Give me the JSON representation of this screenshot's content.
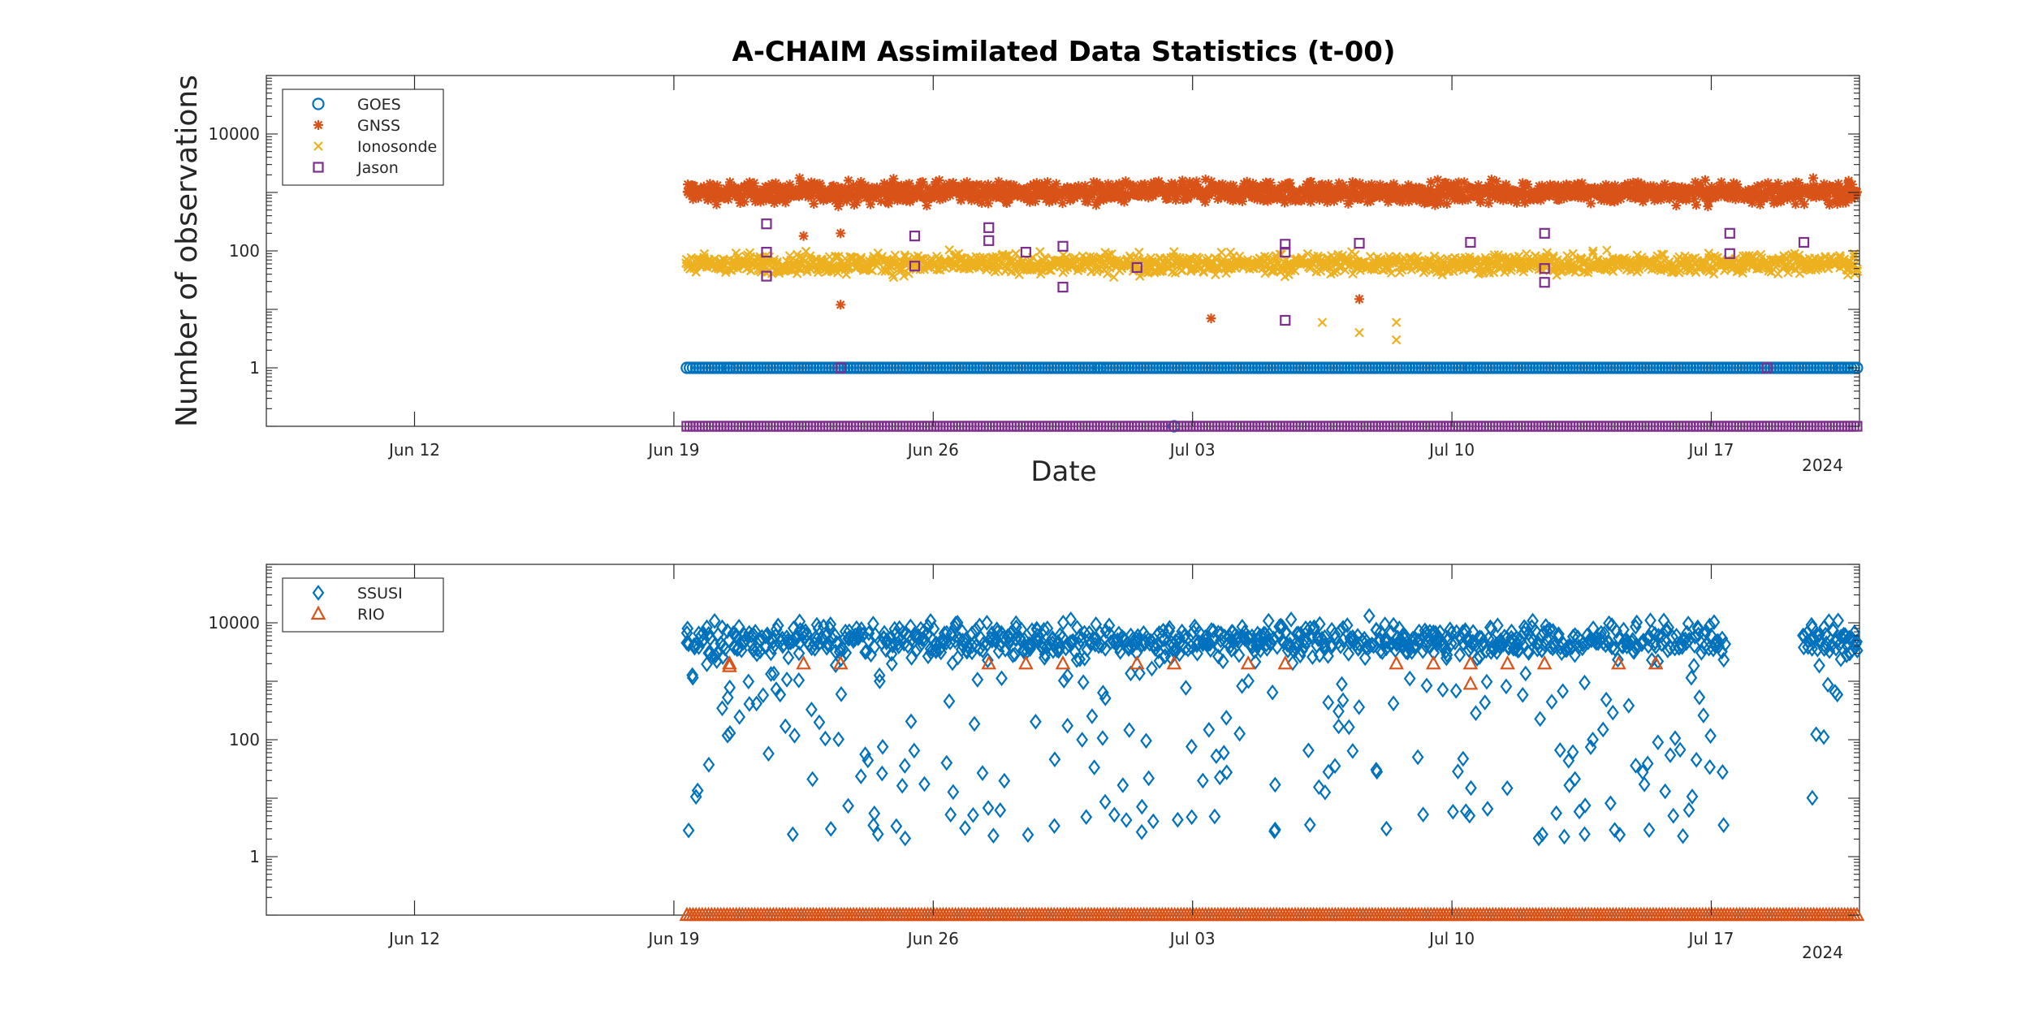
{
  "chart_data": [
    {
      "type": "scatter",
      "title": "A-CHAIM Assimilated Data Statistics (t-00)",
      "xlabel": "Date",
      "ylabel": "Number of observations",
      "x_axis": "time",
      "xlim": [
        "2024-06-08",
        "2024-07-21"
      ],
      "x_ticks": [
        "Jun 12",
        "Jun 19",
        "Jun 26",
        "Jul 03",
        "Jul 10",
        "Jul 17"
      ],
      "x_secondary_label": "2024",
      "yscale": "log",
      "ylim": [
        0.1,
        100000
      ],
      "y_ticks": [
        "1",
        "100",
        "10000"
      ],
      "legend_position": "top-left",
      "series": [
        {
          "name": "GOES",
          "marker": "circle",
          "color": "#0072BD",
          "x_range": [
            "2024-06-19",
            "2024-07-21"
          ],
          "typical_value": 1,
          "sample": [
            [
              "2024-06-20",
              1
            ],
            [
              "2024-06-30",
              1
            ],
            [
              "2024-07-10",
              1
            ],
            [
              "2024-07-20",
              1
            ],
            [
              "2024-07-02",
              0.1
            ]
          ]
        },
        {
          "name": "GNSS",
          "marker": "asterisk",
          "color": "#D95319",
          "x_range": [
            "2024-06-19",
            "2024-07-21"
          ],
          "typical_value": 1000,
          "value_range": [
            300,
            2500
          ],
          "sample": [
            [
              "2024-06-22",
              180
            ],
            [
              "2024-06-23",
              200
            ],
            [
              "2024-06-23",
              12
            ],
            [
              "2024-07-03",
              7
            ],
            [
              "2024-07-07",
              15
            ]
          ]
        },
        {
          "name": "Ionosonde",
          "marker": "x",
          "color": "#EDB120",
          "x_range": [
            "2024-06-19",
            "2024-07-21"
          ],
          "typical_value": 60,
          "value_range": [
            20,
            150
          ],
          "sample": [
            [
              "2024-07-06",
              6
            ],
            [
              "2024-07-07",
              4
            ],
            [
              "2024-07-08",
              6
            ],
            [
              "2024-07-08",
              3
            ]
          ]
        },
        {
          "name": "Jason",
          "marker": "square",
          "color": "#7E2F8E",
          "x_range": [
            "2024-06-19",
            "2024-07-21"
          ],
          "typical_value": 0.1,
          "sample": [
            [
              "2024-06-21",
              290
            ],
            [
              "2024-06-21",
              95
            ],
            [
              "2024-06-21",
              37
            ],
            [
              "2024-06-25",
              180
            ],
            [
              "2024-06-25",
              55
            ],
            [
              "2024-06-27",
              250
            ],
            [
              "2024-06-27",
              150
            ],
            [
              "2024-06-28",
              95
            ],
            [
              "2024-06-29",
              120
            ],
            [
              "2024-06-29",
              24
            ],
            [
              "2024-07-01",
              52
            ],
            [
              "2024-07-05",
              130
            ],
            [
              "2024-07-05",
              95
            ],
            [
              "2024-07-05",
              6.5
            ],
            [
              "2024-07-07",
              135
            ],
            [
              "2024-07-10",
              140
            ],
            [
              "2024-07-12",
              200
            ],
            [
              "2024-07-12",
              50
            ],
            [
              "2024-07-12",
              29
            ],
            [
              "2024-07-17",
              200
            ],
            [
              "2024-07-17",
              90
            ],
            [
              "2024-07-19",
              140
            ],
            [
              "2024-06-23",
              1
            ],
            [
              "2024-07-18",
              1
            ]
          ]
        }
      ]
    },
    {
      "type": "scatter",
      "x_axis": "time",
      "xlim": [
        "2024-06-08",
        "2024-07-21"
      ],
      "x_ticks": [
        "Jun 12",
        "Jun 19",
        "Jun 26",
        "Jul 03",
        "Jul 10",
        "Jul 17"
      ],
      "x_secondary_label": "2024",
      "yscale": "log",
      "ylim": [
        0.1,
        100000
      ],
      "y_ticks": [
        "1",
        "100",
        "10000"
      ],
      "legend_position": "top-left",
      "series": [
        {
          "name": "SSUSI",
          "marker": "diamond",
          "color": "#0072BD",
          "x_range": [
            "2024-06-19",
            "2024-07-21"
          ],
          "typical_value": 5000,
          "value_range": [
            2,
            18000
          ],
          "gap": [
            "2024-07-17",
            "2024-07-19"
          ]
        },
        {
          "name": "RIO",
          "marker": "triangle",
          "color": "#D95319",
          "x_range": [
            "2024-06-19",
            "2024-07-21"
          ],
          "typical_value": 0.1,
          "sample": [
            [
              "2024-06-20",
              2000
            ],
            [
              "2024-06-20",
              1800
            ],
            [
              "2024-06-22",
              2000
            ],
            [
              "2024-06-23",
              2000
            ],
            [
              "2024-06-27",
              2000
            ],
            [
              "2024-06-28",
              2000
            ],
            [
              "2024-06-29",
              2000
            ],
            [
              "2024-07-01",
              2000
            ],
            [
              "2024-07-02",
              2000
            ],
            [
              "2024-07-04",
              2000
            ],
            [
              "2024-07-05",
              2000
            ],
            [
              "2024-07-08",
              2000
            ],
            [
              "2024-07-09",
              2000
            ],
            [
              "2024-07-10",
              2000
            ],
            [
              "2024-07-10",
              900
            ],
            [
              "2024-07-11",
              2000
            ],
            [
              "2024-07-12",
              2000
            ],
            [
              "2024-07-14",
              2000
            ],
            [
              "2024-07-15",
              2000
            ]
          ]
        }
      ]
    }
  ]
}
